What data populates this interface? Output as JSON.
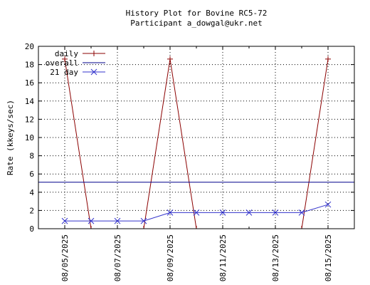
{
  "chart_data": {
    "type": "line",
    "title": "History Plot for Bovine RC5-72",
    "subtitle": "Participant a_dowgal@ukr.net",
    "xlabel": "",
    "ylabel": "Rate (kkeys/sec)",
    "ylim": [
      0,
      20
    ],
    "yticks": [
      0,
      2,
      4,
      6,
      8,
      10,
      12,
      14,
      16,
      18,
      20
    ],
    "xlim": [
      "08/04/2025",
      "08/16/2025"
    ],
    "xtick_labels": [
      "08/05/2025",
      "08/07/2025",
      "08/09/2025",
      "08/11/2025",
      "08/13/2025",
      "08/15/2025"
    ],
    "grid": true,
    "legend_position": "top-left",
    "series": [
      {
        "name": "daily",
        "color": "#8b0000",
        "marker": "plus",
        "x": [
          "08/05/2025",
          "08/06/2025",
          "08/08/2025",
          "08/09/2025",
          "08/10/2025",
          "08/14/2025",
          "08/15/2025"
        ],
        "y": [
          18.6,
          0,
          0,
          18.6,
          0,
          0,
          18.6
        ]
      },
      {
        "name": "overall",
        "color": "#00008b",
        "marker": "none",
        "x": [
          "08/04/2025",
          "08/16/2025"
        ],
        "y": [
          5.1,
          5.1
        ]
      },
      {
        "name": "21 day",
        "color": "#3333cc",
        "marker": "cross",
        "x": [
          "08/05/2025",
          "08/06/2025",
          "08/07/2025",
          "08/08/2025",
          "08/09/2025",
          "08/10/2025",
          "08/11/2025",
          "08/12/2025",
          "08/13/2025",
          "08/14/2025",
          "08/15/2025"
        ],
        "y": [
          0.85,
          0.85,
          0.85,
          0.85,
          1.77,
          1.77,
          1.77,
          1.77,
          1.77,
          1.77,
          2.65
        ]
      }
    ]
  }
}
